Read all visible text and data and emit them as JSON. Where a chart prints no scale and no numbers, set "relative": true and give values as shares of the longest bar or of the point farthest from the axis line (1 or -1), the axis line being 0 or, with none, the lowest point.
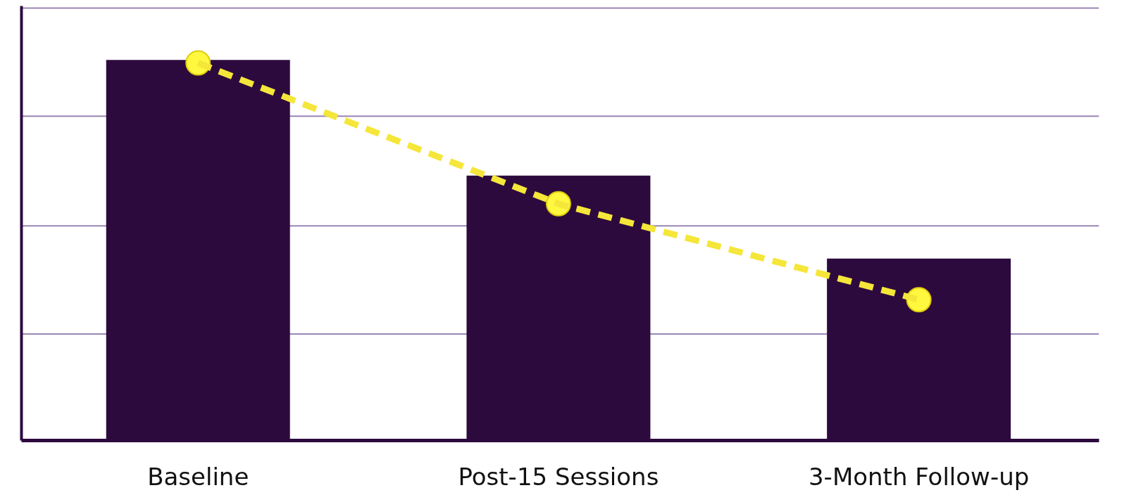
{
  "chart_data": {
    "type": "bar",
    "relative": true,
    "categories": [
      "Baseline",
      "Post-15 Sessions",
      "3-Month Follow-up"
    ],
    "series": [
      {
        "color": "#2d0a3e",
        "values": [
          1,
          0.696,
          0.478
        ]
      },
      {
        "type": "line",
        "color": "#f5e63a",
        "values": [
          0.992,
          0.622,
          0.37
        ],
        "marker": "circle",
        "line_style": "dashed"
      }
    ],
    "ref_lines": [
      {
        "axis": "y",
        "value": 0.28,
        "color": "#9a86b4"
      },
      {
        "axis": "y",
        "value": 0.564,
        "color": "#9a86b4"
      },
      {
        "axis": "y",
        "value": 0.852,
        "color": "#9a86b4"
      },
      {
        "axis": "y",
        "value": 1.136,
        "color": "#9a86b4"
      }
    ]
  }
}
